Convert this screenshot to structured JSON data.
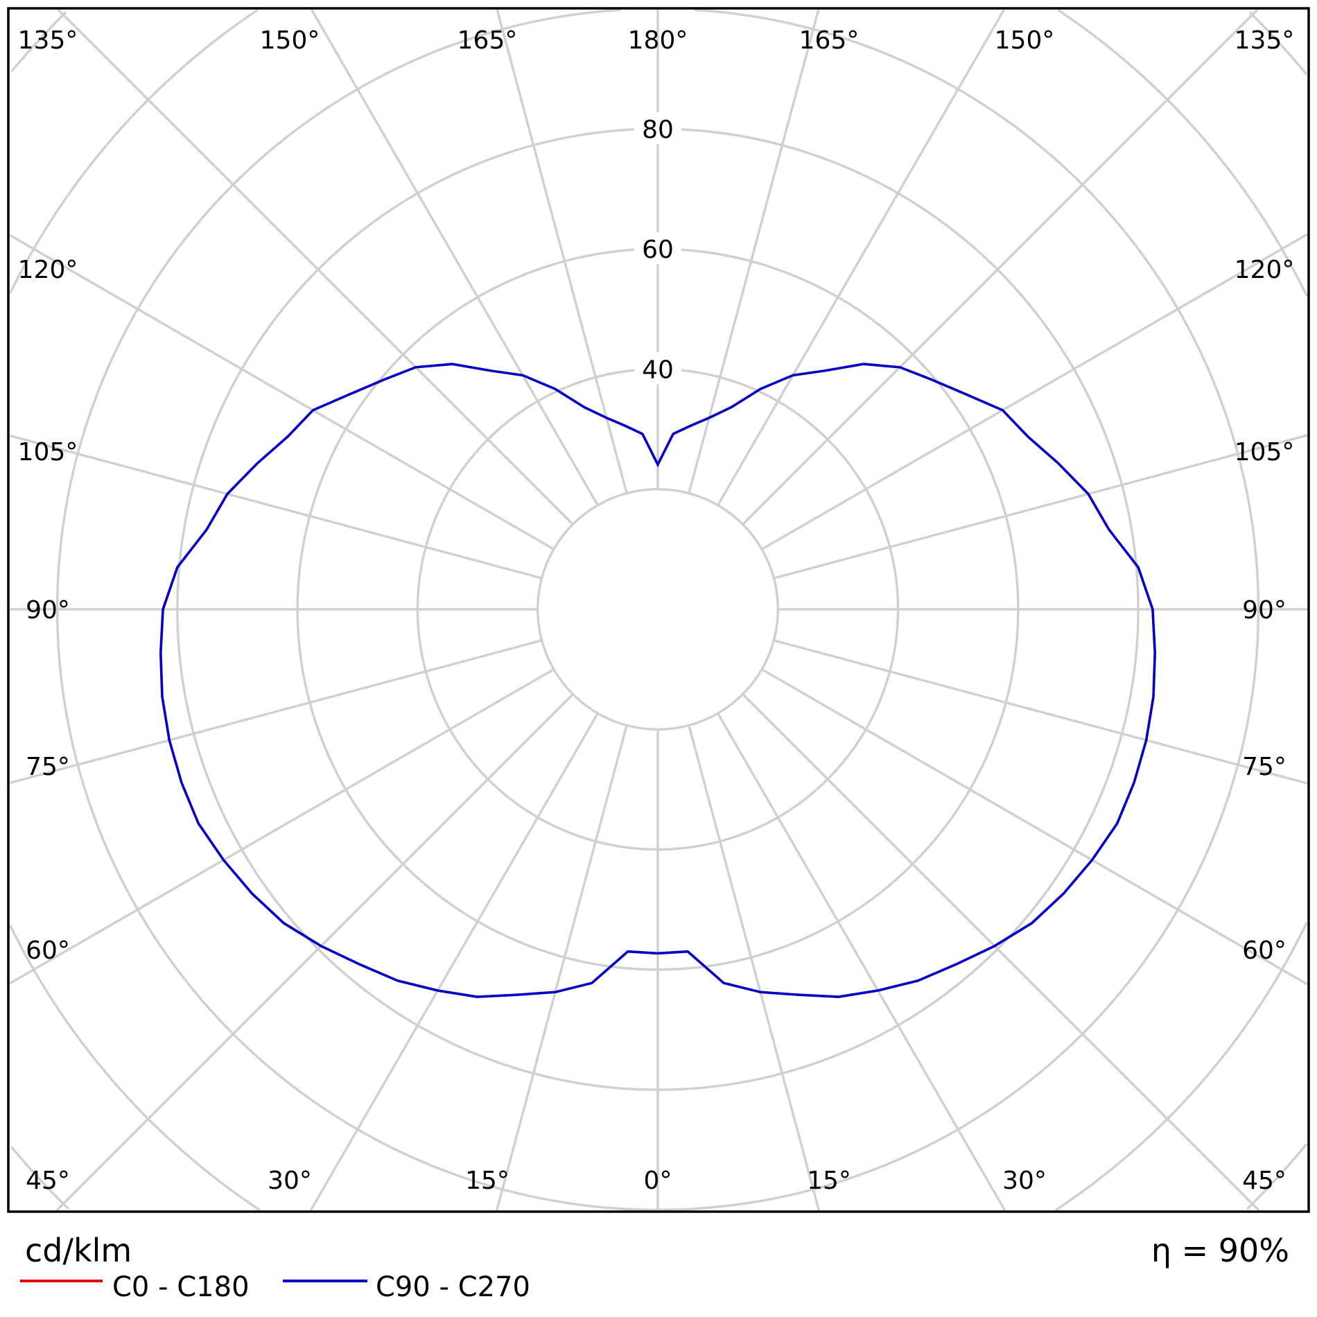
{
  "chart_data": {
    "type": "polar-line",
    "unit_label": "cd/klm",
    "efficiency_label": "η = 90%",
    "radial_ticks": [
      40,
      60,
      80
    ],
    "radial_rings": [
      20,
      40,
      60,
      80,
      100,
      120,
      140
    ],
    "grid": true,
    "angle_step_deg": 15,
    "angle_labels": {
      "top": [
        "135°",
        "150°",
        "165°",
        "180°",
        "165°",
        "150°",
        "135°"
      ],
      "left": [
        "120°",
        "105°",
        "90°",
        "75°",
        "60°"
      ],
      "right": [
        "120°",
        "105°",
        "90°",
        "75°",
        "60°"
      ],
      "bottom": [
        "45°",
        "30°",
        "15°",
        "0°",
        "15°",
        "30°",
        "45°"
      ]
    },
    "gamma_deg": [
      0,
      5,
      10,
      15,
      20,
      25,
      30,
      35,
      40,
      45,
      50,
      55,
      60,
      65,
      70,
      75,
      80,
      85,
      90,
      95,
      100,
      105,
      110,
      115,
      120,
      125,
      130,
      135,
      140,
      145,
      150,
      155,
      160,
      165,
      170,
      175,
      180
    ],
    "series": [
      {
        "name": "C0 - C180",
        "color": "#e00000",
        "values": [
          57.3,
          57.2,
          63.2,
          66,
          68.3,
          71.2,
          73.3,
          75.5,
          77.2,
          79.3,
          81.3,
          82.5,
          83.5,
          84.4,
          84.4,
          84.2,
          83.8,
          83.1,
          82.4,
          80.3,
          76.3,
          74.2,
          71,
          68,
          66.3,
          62.5,
          59.5,
          57,
          53.3,
          48.5,
          45,
          40.5,
          35.8,
          33,
          31,
          29.3,
          24.1
        ]
      },
      {
        "name": "C90 - C270",
        "color": "#0000cc",
        "values": [
          57.3,
          57.2,
          63.2,
          66,
          68.3,
          71.2,
          73.3,
          75.5,
          77.2,
          79.3,
          81.3,
          82.5,
          83.5,
          84.4,
          84.4,
          84.2,
          83.8,
          83.1,
          82.4,
          80.3,
          76.3,
          74.2,
          71,
          68,
          66.3,
          62.5,
          59.5,
          57,
          53.3,
          48.5,
          45,
          40.5,
          35.8,
          33,
          31,
          29.3,
          24.1
        ]
      }
    ]
  }
}
